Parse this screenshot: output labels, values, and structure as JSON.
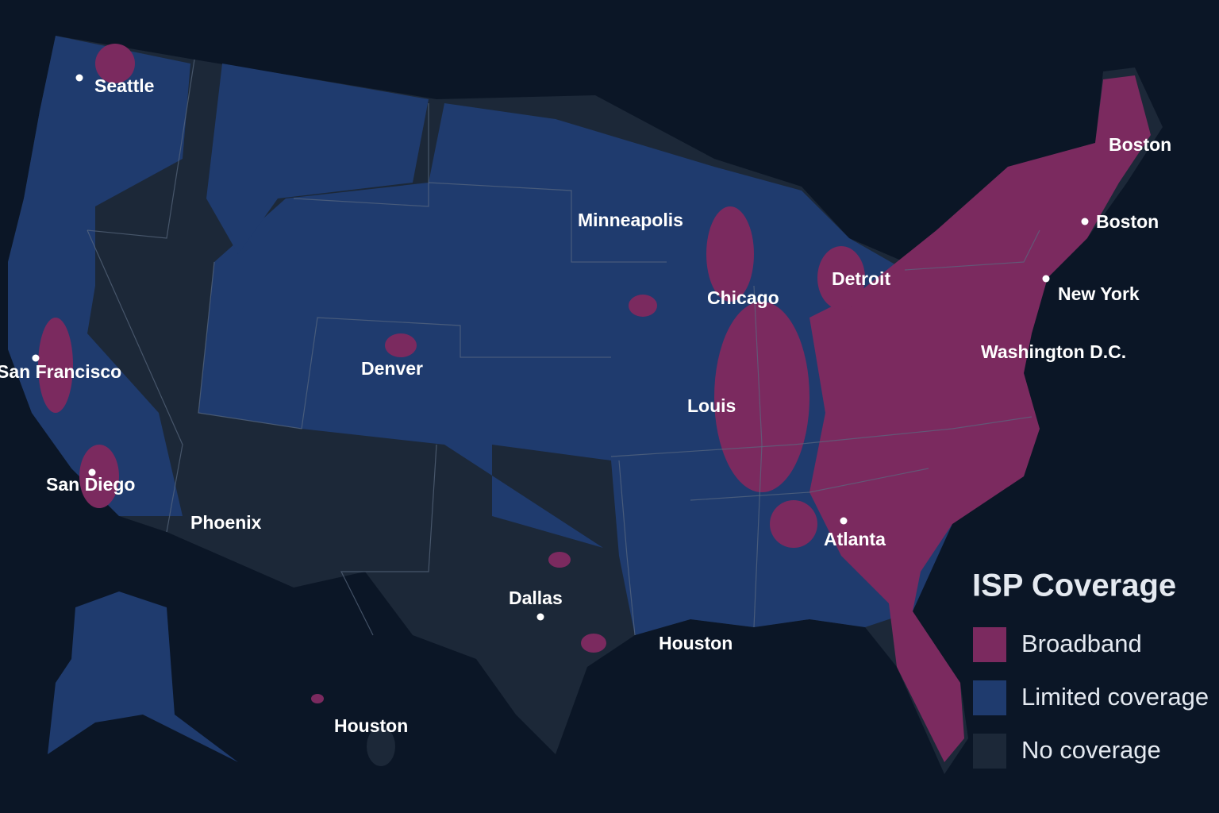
{
  "cities": [
    {
      "label": "Seattle"
    },
    {
      "label": "San Francisco"
    },
    {
      "label": "San Diego"
    },
    {
      "label": "Phoenix"
    },
    {
      "label": "Denver"
    },
    {
      "label": "Minneapolis"
    },
    {
      "label": "Chicago"
    },
    {
      "label": "Louis"
    },
    {
      "label": "Detroit"
    },
    {
      "label": "Boston"
    },
    {
      "label": "Boston"
    },
    {
      "label": "New York"
    },
    {
      "label": "Washington D.C."
    },
    {
      "label": "Atlanta"
    },
    {
      "label": "Dallas"
    },
    {
      "label": "Houston"
    },
    {
      "label": "Houston"
    }
  ],
  "legend": {
    "title": "ISP Coverage",
    "items": [
      {
        "label": "Broadband",
        "color": "#7b2a5f"
      },
      {
        "label": "Limited coverage",
        "color": "#1f3b6e"
      },
      {
        "label": "No coverage",
        "color": "#1c2838"
      }
    ]
  }
}
